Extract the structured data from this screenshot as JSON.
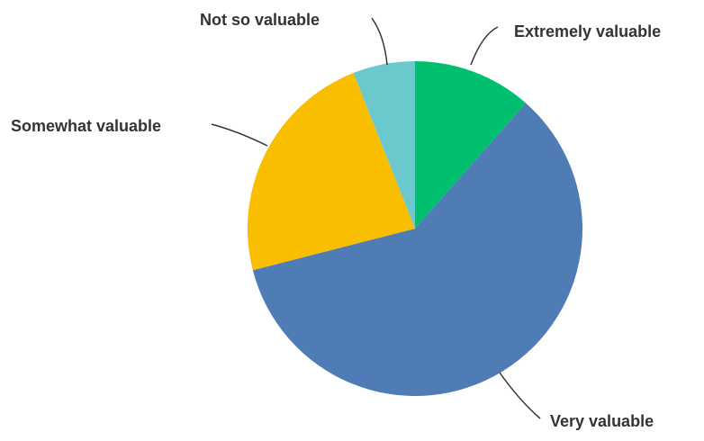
{
  "chart_data": {
    "type": "pie",
    "title": "",
    "slices": [
      {
        "label": "Extremely valuable",
        "value": 11.5,
        "color": "#00bf6f"
      },
      {
        "label": "Very valuable",
        "value": 59.5,
        "color": "#507cb6"
      },
      {
        "label": "Somewhat valuable",
        "value": 23.0,
        "color": "#f9be00"
      },
      {
        "label": "Not so valuable",
        "value": 6.0,
        "color": "#6bc8cd"
      }
    ],
    "start_angle_deg": 0,
    "direction": "clockwise",
    "labels_placement": "outside with leader lines"
  }
}
